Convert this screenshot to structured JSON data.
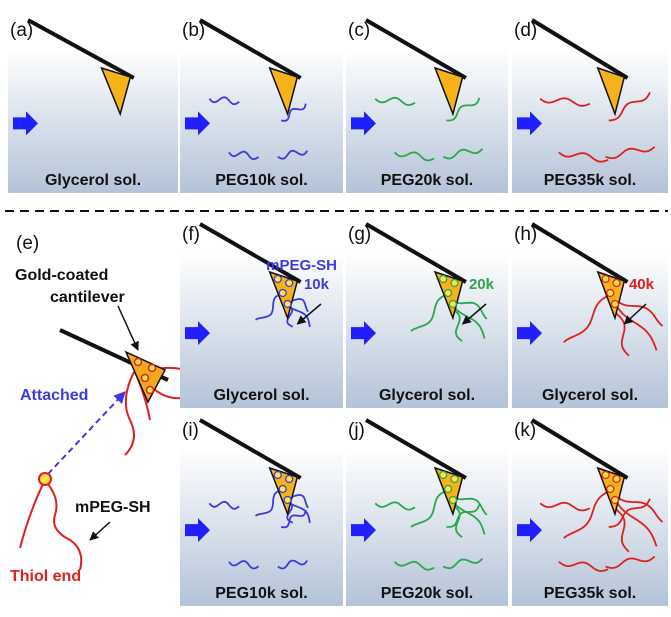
{
  "panels": [
    {
      "label": "(a)",
      "caption": "Glycerol sol."
    },
    {
      "label": "(b)",
      "caption": "PEG10k sol."
    },
    {
      "label": "(c)",
      "caption": "PEG20k sol."
    },
    {
      "label": "(d)",
      "caption": "PEG35k sol."
    },
    {
      "label": "(f)",
      "caption": "Glycerol sol.",
      "annotation": [
        "mPEG-SH",
        "10k"
      ]
    },
    {
      "label": "(g)",
      "caption": "Glycerol sol.",
      "annotation": [
        "20k"
      ]
    },
    {
      "label": "(h)",
      "caption": "Glycerol sol.",
      "annotation": [
        "40k"
      ]
    },
    {
      "label": "(i)",
      "caption": "PEG10k sol."
    },
    {
      "label": "(j)",
      "caption": "PEG20k sol."
    },
    {
      "label": "(k)",
      "caption": "PEG35k sol."
    }
  ],
  "schematic": {
    "label": "(e)",
    "cantilever": [
      "Gold-coated",
      "cantilever"
    ],
    "attached": "Attached",
    "polymer": "mPEG-SH",
    "thiol": "Thiol end"
  }
}
